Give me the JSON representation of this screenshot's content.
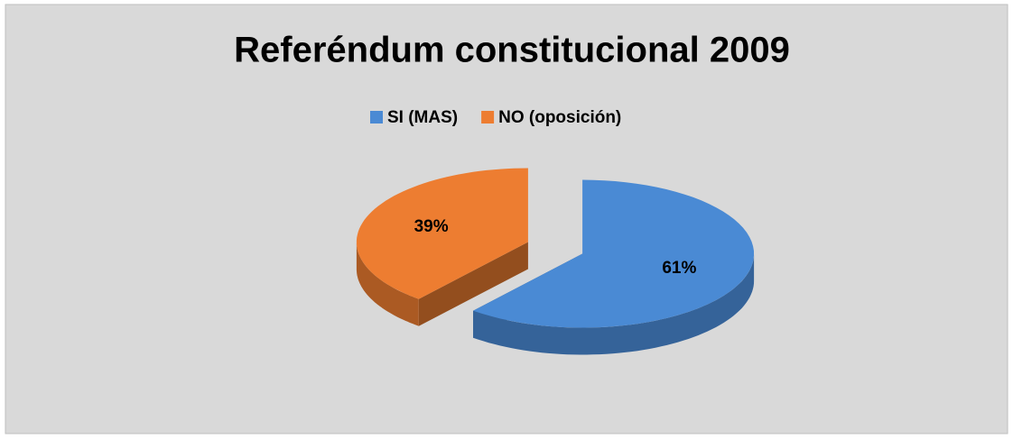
{
  "chart_data": {
    "type": "pie",
    "title": "Referéndum constitucional 2009",
    "categories": [
      "SI (MAS)",
      "NO (oposición)"
    ],
    "values": [
      61,
      39
    ],
    "value_labels": [
      "61%",
      "39%"
    ],
    "colors": [
      "#4a8ad4",
      "#ed7d31"
    ],
    "legend": "top"
  }
}
